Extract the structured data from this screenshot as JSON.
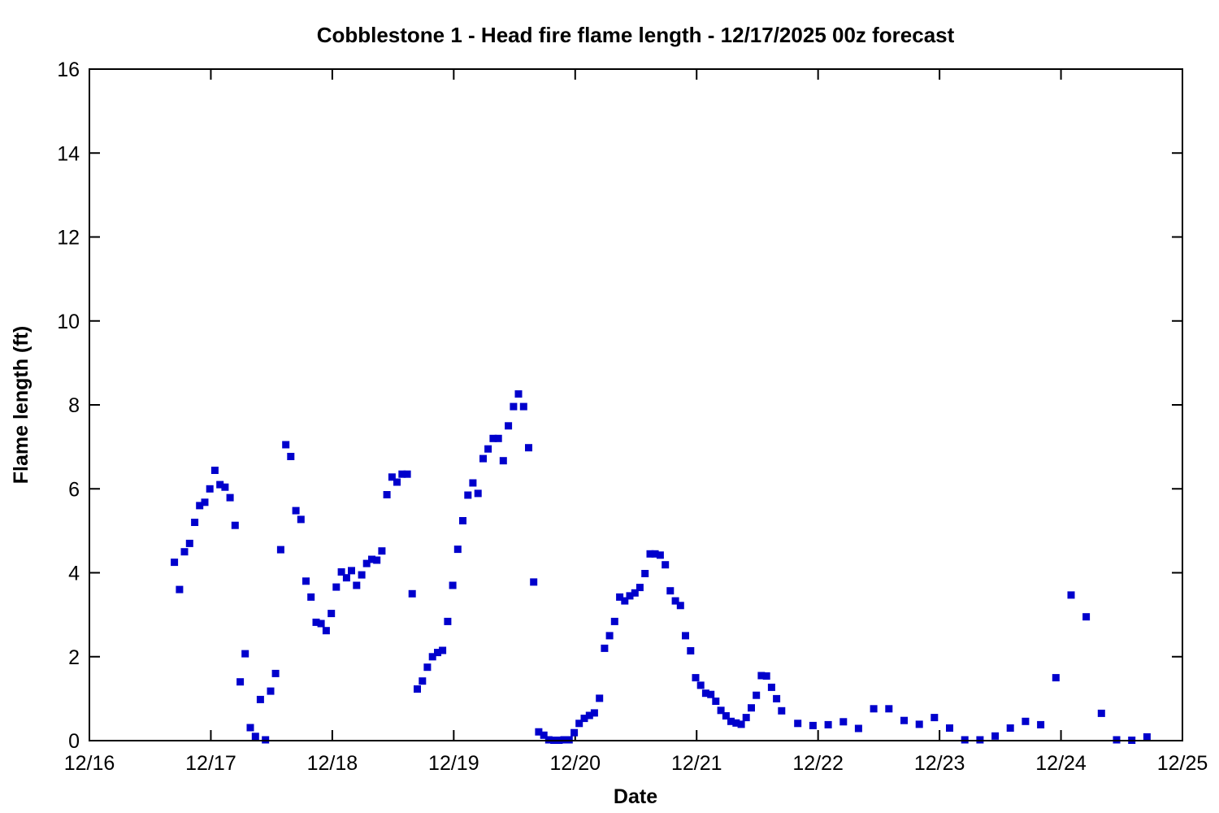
{
  "title": "Cobblestone 1 - Head fire flame length - 12/17/2025 00z forecast",
  "colors": {
    "marker": "#0000cc",
    "axis": "#000000",
    "background": "#ffffff"
  },
  "chart_data": {
    "type": "scatter",
    "marker": "filled-square",
    "marker_size_px": 9,
    "title": "Cobblestone 1 - Head fire flame length - 12/17/2025 00z forecast",
    "xlabel": "Date",
    "ylabel": "Flame length (ft)",
    "legend": "none",
    "grid": false,
    "x_unit": "days since 12/16 00:00 (t=1.0 equals 12/17)",
    "x_range_days": [
      0,
      9
    ],
    "x_tick_labels": [
      "12/16",
      "12/17",
      "12/18",
      "12/19",
      "12/20",
      "12/21",
      "12/22",
      "12/23",
      "12/24",
      "12/25"
    ],
    "ylim": [
      0,
      16
    ],
    "y_ticks": [
      0,
      2,
      4,
      6,
      8,
      10,
      12,
      14,
      16
    ],
    "points": [
      [
        0.7,
        4.25
      ],
      [
        0.742,
        3.6
      ],
      [
        0.783,
        4.5
      ],
      [
        0.825,
        4.7
      ],
      [
        0.867,
        5.2
      ],
      [
        0.908,
        5.6
      ],
      [
        0.95,
        5.68
      ],
      [
        0.992,
        6.0
      ],
      [
        1.033,
        6.44
      ],
      [
        1.075,
        6.1
      ],
      [
        1.117,
        6.04
      ],
      [
        1.158,
        5.79
      ],
      [
        1.2,
        5.13
      ],
      [
        1.242,
        1.4
      ],
      [
        1.283,
        2.07
      ],
      [
        1.325,
        0.31
      ],
      [
        1.367,
        0.1
      ],
      [
        1.408,
        0.98
      ],
      [
        1.45,
        0.02
      ],
      [
        1.492,
        1.18
      ],
      [
        1.533,
        1.6
      ],
      [
        1.575,
        4.55
      ],
      [
        1.617,
        7.05
      ],
      [
        1.658,
        6.77
      ],
      [
        1.7,
        5.48
      ],
      [
        1.742,
        5.27
      ],
      [
        1.783,
        3.8
      ],
      [
        1.825,
        3.42
      ],
      [
        1.867,
        2.82
      ],
      [
        1.908,
        2.79
      ],
      [
        1.95,
        2.62
      ],
      [
        1.992,
        3.03
      ],
      [
        2.033,
        3.66
      ],
      [
        2.075,
        4.02
      ],
      [
        2.117,
        3.88
      ],
      [
        2.158,
        4.05
      ],
      [
        2.2,
        3.7
      ],
      [
        2.242,
        3.95
      ],
      [
        2.283,
        4.22
      ],
      [
        2.325,
        4.32
      ],
      [
        2.367,
        4.3
      ],
      [
        2.408,
        4.52
      ],
      [
        2.45,
        5.86
      ],
      [
        2.492,
        6.28
      ],
      [
        2.533,
        6.16
      ],
      [
        2.575,
        6.35
      ],
      [
        2.617,
        6.35
      ],
      [
        2.658,
        3.5
      ],
      [
        2.7,
        1.23
      ],
      [
        2.742,
        1.42
      ],
      [
        2.783,
        1.75
      ],
      [
        2.825,
        2.0
      ],
      [
        2.867,
        2.1
      ],
      [
        2.908,
        2.15
      ],
      [
        2.95,
        2.84
      ],
      [
        2.992,
        3.7
      ],
      [
        3.033,
        4.56
      ],
      [
        3.075,
        5.24
      ],
      [
        3.117,
        5.85
      ],
      [
        3.158,
        6.14
      ],
      [
        3.2,
        5.89
      ],
      [
        3.242,
        6.72
      ],
      [
        3.283,
        6.95
      ],
      [
        3.325,
        7.2
      ],
      [
        3.367,
        7.2
      ],
      [
        3.408,
        6.67
      ],
      [
        3.45,
        7.5
      ],
      [
        3.492,
        7.96
      ],
      [
        3.533,
        8.26
      ],
      [
        3.575,
        7.96
      ],
      [
        3.617,
        6.98
      ],
      [
        3.658,
        3.78
      ],
      [
        3.7,
        0.21
      ],
      [
        3.742,
        0.13
      ],
      [
        3.783,
        0.02
      ],
      [
        3.825,
        0.01
      ],
      [
        3.867,
        0.01
      ],
      [
        3.908,
        0.02
      ],
      [
        3.95,
        0.02
      ],
      [
        3.992,
        0.19
      ],
      [
        4.033,
        0.41
      ],
      [
        4.075,
        0.53
      ],
      [
        4.117,
        0.6
      ],
      [
        4.158,
        0.66
      ],
      [
        4.2,
        1.01
      ],
      [
        4.242,
        2.2
      ],
      [
        4.283,
        2.5
      ],
      [
        4.325,
        2.84
      ],
      [
        4.367,
        3.42
      ],
      [
        4.408,
        3.33
      ],
      [
        4.45,
        3.45
      ],
      [
        4.492,
        3.52
      ],
      [
        4.533,
        3.65
      ],
      [
        4.575,
        3.98
      ],
      [
        4.617,
        4.45
      ],
      [
        4.658,
        4.45
      ],
      [
        4.7,
        4.42
      ],
      [
        4.742,
        4.19
      ],
      [
        4.783,
        3.57
      ],
      [
        4.825,
        3.33
      ],
      [
        4.867,
        3.22
      ],
      [
        4.908,
        2.5
      ],
      [
        4.95,
        2.14
      ],
      [
        4.992,
        1.5
      ],
      [
        5.033,
        1.32
      ],
      [
        5.075,
        1.13
      ],
      [
        5.117,
        1.1
      ],
      [
        5.158,
        0.94
      ],
      [
        5.2,
        0.72
      ],
      [
        5.242,
        0.59
      ],
      [
        5.283,
        0.46
      ],
      [
        5.325,
        0.42
      ],
      [
        5.367,
        0.39
      ],
      [
        5.408,
        0.55
      ],
      [
        5.45,
        0.78
      ],
      [
        5.492,
        1.08
      ],
      [
        5.533,
        1.55
      ],
      [
        5.575,
        1.54
      ],
      [
        5.617,
        1.27
      ],
      [
        5.658,
        1.0
      ],
      [
        5.7,
        0.71
      ],
      [
        5.833,
        0.41
      ],
      [
        5.958,
        0.36
      ],
      [
        6.083,
        0.38
      ],
      [
        6.208,
        0.45
      ],
      [
        6.333,
        0.29
      ],
      [
        6.458,
        0.76
      ],
      [
        6.583,
        0.76
      ],
      [
        6.708,
        0.48
      ],
      [
        6.833,
        0.39
      ],
      [
        6.958,
        0.55
      ],
      [
        7.083,
        0.3
      ],
      [
        7.208,
        0.02
      ],
      [
        7.333,
        0.02
      ],
      [
        7.458,
        0.11
      ],
      [
        7.583,
        0.3
      ],
      [
        7.708,
        0.46
      ],
      [
        7.833,
        0.38
      ],
      [
        7.958,
        1.5
      ],
      [
        8.083,
        3.47
      ],
      [
        8.208,
        2.95
      ],
      [
        8.333,
        0.65
      ],
      [
        8.458,
        0.02
      ],
      [
        8.583,
        0.01
      ],
      [
        8.708,
        0.09
      ]
    ]
  }
}
